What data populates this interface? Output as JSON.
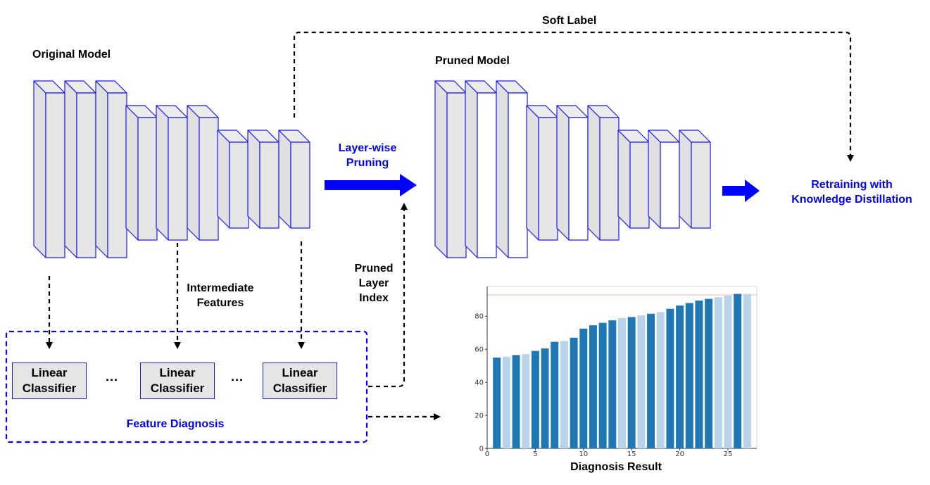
{
  "labels": {
    "original_model": "Original Model",
    "pruned_model": "Pruned Model",
    "soft_label": "Soft Label",
    "layer_wise_pruning_line1": "Layer-wise",
    "layer_wise_pruning_line2": "Pruning",
    "retraining_line1": "Retraining with",
    "retraining_line2": "Knowledge Distillation",
    "intermediate_features_line1": "Intermediate",
    "intermediate_features_line2": "Features",
    "pruned_layer_index_line1": "Pruned",
    "pruned_layer_index_line2": "Layer",
    "pruned_layer_index_line3": "Index",
    "feature_diagnosis": "Feature Diagnosis",
    "diagnosis_result": "Diagnosis Result",
    "ellipsis": "···"
  },
  "classifiers": [
    {
      "line1": "Linear",
      "line2": "Classifier"
    },
    {
      "line1": "Linear",
      "line2": "Classifier"
    },
    {
      "line1": "Linear",
      "line2": "Classifier"
    }
  ],
  "colors": {
    "accent": "#0000ff",
    "layer_fill": "#e6e6e6",
    "layer_stroke": "#1a1aff",
    "pruned_fill": "#ffffff",
    "bar_dark": "#1f77b4",
    "bar_light": "#b9d3ea"
  },
  "chart_data": {
    "type": "bar",
    "title": "",
    "xlabel": "",
    "ylabel": "",
    "x": [
      1,
      2,
      3,
      4,
      5,
      6,
      7,
      8,
      9,
      10,
      11,
      12,
      13,
      14,
      15,
      16,
      17,
      18,
      19,
      20,
      21,
      22,
      23,
      24,
      25,
      26,
      27
    ],
    "values": [
      55,
      55.5,
      56.5,
      57,
      59,
      60.5,
      64.5,
      65,
      67,
      72.5,
      74.5,
      76,
      77.5,
      79,
      79.5,
      80.5,
      81.5,
      82.5,
      84.5,
      86.5,
      88,
      89.5,
      90.5,
      91.5,
      92.5,
      93.5,
      93.5
    ],
    "highlight": [
      true,
      false,
      true,
      false,
      true,
      true,
      true,
      false,
      true,
      true,
      true,
      true,
      true,
      false,
      true,
      false,
      true,
      false,
      true,
      true,
      true,
      true,
      true,
      false,
      false,
      true,
      false
    ],
    "xticks": [
      0,
      5,
      10,
      15,
      20,
      25
    ],
    "yticks": [
      0,
      20,
      40,
      60,
      80
    ],
    "xlim": [
      0,
      28
    ],
    "ylim": [
      0,
      98
    ],
    "grid": false
  }
}
